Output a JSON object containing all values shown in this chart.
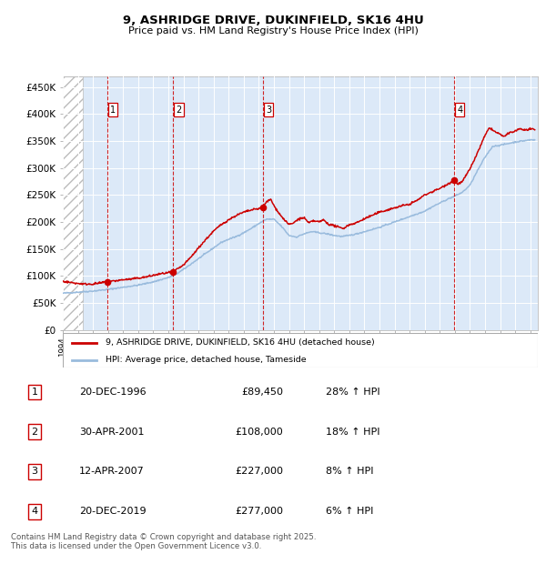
{
  "title": "9, ASHRIDGE DRIVE, DUKINFIELD, SK16 4HU",
  "subtitle": "Price paid vs. HM Land Registry's House Price Index (HPI)",
  "ylabel_ticks": [
    "£0",
    "£50K",
    "£100K",
    "£150K",
    "£200K",
    "£250K",
    "£300K",
    "£350K",
    "£400K",
    "£450K"
  ],
  "ytick_values": [
    0,
    50000,
    100000,
    150000,
    200000,
    250000,
    300000,
    350000,
    400000,
    450000
  ],
  "ylim": [
    0,
    470000
  ],
  "xlim_start": 1994.0,
  "xlim_end": 2025.5,
  "plot_bg_color": "#dce9f8",
  "sale_markers": [
    {
      "year": 1996.96,
      "price": 89450,
      "label": "1"
    },
    {
      "year": 2001.33,
      "price": 108000,
      "label": "2"
    },
    {
      "year": 2007.28,
      "price": 227000,
      "label": "3"
    },
    {
      "year": 2019.96,
      "price": 277000,
      "label": "4"
    }
  ],
  "vline_color": "#cc0000",
  "marker_color": "#cc0000",
  "red_line_color": "#cc0000",
  "blue_line_color": "#99bbdd",
  "legend_red_label": "9, ASHRIDGE DRIVE, DUKINFIELD, SK16 4HU (detached house)",
  "legend_blue_label": "HPI: Average price, detached house, Tameside",
  "table_entries": [
    {
      "num": "1",
      "date": "20-DEC-1996",
      "price": "£89,450",
      "change": "28% ↑ HPI"
    },
    {
      "num": "2",
      "date": "30-APR-2001",
      "price": "£108,000",
      "change": "18% ↑ HPI"
    },
    {
      "num": "3",
      "date": "12-APR-2007",
      "price": "£227,000",
      "change": "8% ↑ HPI"
    },
    {
      "num": "4",
      "date": "20-DEC-2019",
      "price": "£277,000",
      "change": "6% ↑ HPI"
    }
  ],
  "footer_text": "Contains HM Land Registry data © Crown copyright and database right 2025.\nThis data is licensed under the Open Government Licence v3.0.",
  "hpi_anchors": [
    [
      1994.0,
      68000
    ],
    [
      1994.5,
      69000
    ],
    [
      1995.0,
      70000
    ],
    [
      1995.5,
      71000
    ],
    [
      1996.0,
      72000
    ],
    [
      1996.5,
      73500
    ],
    [
      1997.0,
      75000
    ],
    [
      1997.5,
      77000
    ],
    [
      1998.0,
      79000
    ],
    [
      1998.5,
      81000
    ],
    [
      1999.0,
      83000
    ],
    [
      1999.5,
      86000
    ],
    [
      2000.0,
      89000
    ],
    [
      2000.5,
      93000
    ],
    [
      2001.0,
      97000
    ],
    [
      2001.5,
      103000
    ],
    [
      2002.0,
      112000
    ],
    [
      2002.5,
      122000
    ],
    [
      2003.0,
      132000
    ],
    [
      2003.5,
      142000
    ],
    [
      2004.0,
      152000
    ],
    [
      2004.5,
      162000
    ],
    [
      2005.0,
      168000
    ],
    [
      2005.5,
      173000
    ],
    [
      2006.0,
      180000
    ],
    [
      2006.5,
      188000
    ],
    [
      2007.0,
      197000
    ],
    [
      2007.5,
      205000
    ],
    [
      2008.0,
      205000
    ],
    [
      2008.5,
      192000
    ],
    [
      2009.0,
      175000
    ],
    [
      2009.5,
      172000
    ],
    [
      2010.0,
      178000
    ],
    [
      2010.5,
      182000
    ],
    [
      2011.0,
      180000
    ],
    [
      2011.5,
      178000
    ],
    [
      2012.0,
      175000
    ],
    [
      2012.5,
      173000
    ],
    [
      2013.0,
      175000
    ],
    [
      2013.5,
      178000
    ],
    [
      2014.0,
      182000
    ],
    [
      2014.5,
      186000
    ],
    [
      2015.0,
      190000
    ],
    [
      2015.5,
      195000
    ],
    [
      2016.0,
      200000
    ],
    [
      2016.5,
      205000
    ],
    [
      2017.0,
      210000
    ],
    [
      2017.5,
      215000
    ],
    [
      2018.0,
      220000
    ],
    [
      2018.5,
      228000
    ],
    [
      2019.0,
      235000
    ],
    [
      2019.5,
      242000
    ],
    [
      2020.0,
      248000
    ],
    [
      2020.5,
      255000
    ],
    [
      2021.0,
      268000
    ],
    [
      2021.5,
      295000
    ],
    [
      2022.0,
      320000
    ],
    [
      2022.5,
      340000
    ],
    [
      2023.0,
      342000
    ],
    [
      2023.5,
      345000
    ],
    [
      2024.0,
      348000
    ],
    [
      2024.5,
      350000
    ],
    [
      2025.0,
      352000
    ],
    [
      2025.3,
      352000
    ]
  ],
  "red_anchors": [
    [
      1994.0,
      90000
    ],
    [
      1994.5,
      88000
    ],
    [
      1995.0,
      86000
    ],
    [
      1995.5,
      85000
    ],
    [
      1996.0,
      85000
    ],
    [
      1996.5,
      87000
    ],
    [
      1996.96,
      89450
    ],
    [
      1997.5,
      91000
    ],
    [
      1998.0,
      93000
    ],
    [
      1998.5,
      94000
    ],
    [
      1999.0,
      96000
    ],
    [
      1999.5,
      98000
    ],
    [
      2000.0,
      101000
    ],
    [
      2000.5,
      104000
    ],
    [
      2001.0,
      106000
    ],
    [
      2001.33,
      108000
    ],
    [
      2002.0,
      120000
    ],
    [
      2002.5,
      135000
    ],
    [
      2003.0,
      152000
    ],
    [
      2003.5,
      168000
    ],
    [
      2004.0,
      183000
    ],
    [
      2004.5,
      195000
    ],
    [
      2005.0,
      204000
    ],
    [
      2005.5,
      212000
    ],
    [
      2006.0,
      218000
    ],
    [
      2006.5,
      222000
    ],
    [
      2007.0,
      225000
    ],
    [
      2007.28,
      227000
    ],
    [
      2007.5,
      237000
    ],
    [
      2007.8,
      242000
    ],
    [
      2008.0,
      230000
    ],
    [
      2008.5,
      210000
    ],
    [
      2009.0,
      195000
    ],
    [
      2009.3,
      198000
    ],
    [
      2009.6,
      205000
    ],
    [
      2010.0,
      208000
    ],
    [
      2010.3,
      198000
    ],
    [
      2010.6,
      202000
    ],
    [
      2011.0,
      200000
    ],
    [
      2011.3,
      204000
    ],
    [
      2011.6,
      196000
    ],
    [
      2012.0,
      193000
    ],
    [
      2012.3,
      190000
    ],
    [
      2012.6,
      188000
    ],
    [
      2013.0,
      195000
    ],
    [
      2013.3,
      197000
    ],
    [
      2013.6,
      200000
    ],
    [
      2014.0,
      206000
    ],
    [
      2014.5,
      212000
    ],
    [
      2015.0,
      218000
    ],
    [
      2015.5,
      222000
    ],
    [
      2016.0,
      226000
    ],
    [
      2016.5,
      230000
    ],
    [
      2017.0,
      233000
    ],
    [
      2017.5,
      240000
    ],
    [
      2018.0,
      250000
    ],
    [
      2018.5,
      256000
    ],
    [
      2019.0,
      262000
    ],
    [
      2019.5,
      270000
    ],
    [
      2019.96,
      277000
    ],
    [
      2020.2,
      270000
    ],
    [
      2020.5,
      275000
    ],
    [
      2021.0,
      298000
    ],
    [
      2021.5,
      328000
    ],
    [
      2022.0,
      360000
    ],
    [
      2022.3,
      375000
    ],
    [
      2022.6,
      368000
    ],
    [
      2023.0,
      362000
    ],
    [
      2023.3,
      358000
    ],
    [
      2023.6,
      365000
    ],
    [
      2024.0,
      368000
    ],
    [
      2024.3,
      373000
    ],
    [
      2024.6,
      370000
    ],
    [
      2025.0,
      372000
    ],
    [
      2025.3,
      370000
    ]
  ]
}
